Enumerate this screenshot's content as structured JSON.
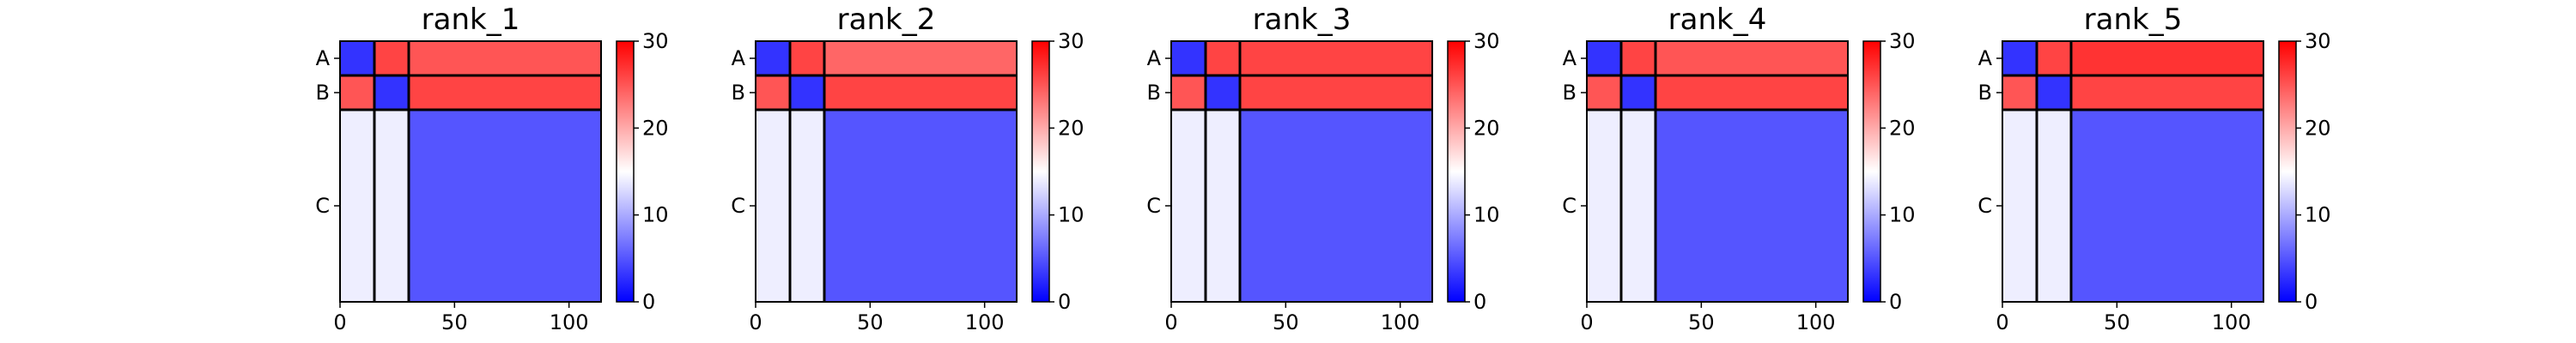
{
  "colorbar": {
    "min": 0,
    "max": 30,
    "ticks": [
      0,
      10,
      20,
      30
    ],
    "colors": [
      "#0000ff",
      "#ffffff",
      "#ff0000"
    ]
  },
  "chart_data": [
    {
      "type": "heatmap",
      "title": "rank_1",
      "xlim": [
        0,
        114
      ],
      "x_ticks": [
        0,
        50,
        100
      ],
      "chain_labels": [
        "A",
        "B",
        "C"
      ],
      "chain_boundaries": [
        0,
        15,
        30,
        114
      ],
      "chain_pae": [
        [
          3,
          26,
          25
        ],
        [
          25,
          3,
          26
        ],
        [
          14,
          14,
          5
        ]
      ],
      "colorbar_range": [
        0,
        30
      ]
    },
    {
      "type": "heatmap",
      "title": "rank_2",
      "xlim": [
        0,
        114
      ],
      "x_ticks": [
        0,
        50,
        100
      ],
      "chain_labels": [
        "A",
        "B",
        "C"
      ],
      "chain_boundaries": [
        0,
        15,
        30,
        114
      ],
      "chain_pae": [
        [
          3,
          26,
          24
        ],
        [
          25,
          3,
          26
        ],
        [
          14,
          14,
          5
        ]
      ],
      "colorbar_range": [
        0,
        30
      ]
    },
    {
      "type": "heatmap",
      "title": "rank_3",
      "xlim": [
        0,
        114
      ],
      "x_ticks": [
        0,
        50,
        100
      ],
      "chain_labels": [
        "A",
        "B",
        "C"
      ],
      "chain_boundaries": [
        0,
        15,
        30,
        114
      ],
      "chain_pae": [
        [
          3,
          26,
          26
        ],
        [
          25,
          3,
          26
        ],
        [
          14,
          14,
          5
        ]
      ],
      "colorbar_range": [
        0,
        30
      ]
    },
    {
      "type": "heatmap",
      "title": "rank_4",
      "xlim": [
        0,
        114
      ],
      "x_ticks": [
        0,
        50,
        100
      ],
      "chain_labels": [
        "A",
        "B",
        "C"
      ],
      "chain_boundaries": [
        0,
        15,
        30,
        114
      ],
      "chain_pae": [
        [
          3,
          26,
          25
        ],
        [
          25,
          3,
          26
        ],
        [
          14,
          14,
          5
        ]
      ],
      "colorbar_range": [
        0,
        30
      ]
    },
    {
      "type": "heatmap",
      "title": "rank_5",
      "xlim": [
        0,
        114
      ],
      "x_ticks": [
        0,
        50,
        100
      ],
      "chain_labels": [
        "A",
        "B",
        "C"
      ],
      "chain_boundaries": [
        0,
        15,
        30,
        114
      ],
      "chain_pae": [
        [
          3,
          26,
          27
        ],
        [
          25,
          3,
          26
        ],
        [
          14,
          14,
          5
        ]
      ],
      "colorbar_range": [
        0,
        30
      ]
    }
  ]
}
